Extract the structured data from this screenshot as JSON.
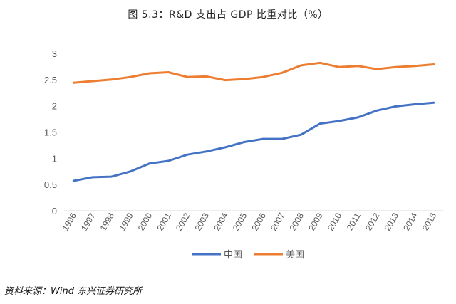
{
  "chart_data": {
    "type": "line",
    "title": "图 5.3：R&D 支出占 GDP 比重对比（%）",
    "source": "资料来源：Wind 东兴证券研究所",
    "categories": [
      "1996",
      "1997",
      "1998",
      "1999",
      "2000",
      "2001",
      "2002",
      "2003",
      "2004",
      "2005",
      "2006",
      "2007",
      "2008",
      "2009",
      "2010",
      "2011",
      "2012",
      "2013",
      "2014",
      "2015"
    ],
    "ylim": [
      0,
      3
    ],
    "yticks": [
      "0",
      "0.5",
      "1",
      "1.5",
      "2",
      "2.5",
      "3"
    ],
    "legend_position": "bottom",
    "grid": false,
    "series": [
      {
        "name": "中国",
        "color": "#4472C4",
        "values": [
          0.57,
          0.64,
          0.65,
          0.75,
          0.9,
          0.95,
          1.07,
          1.13,
          1.21,
          1.31,
          1.37,
          1.37,
          1.45,
          1.66,
          1.71,
          1.78,
          1.91,
          1.99,
          2.03,
          2.06
        ]
      },
      {
        "name": "美国",
        "color": "#ED7D31",
        "values": [
          2.44,
          2.47,
          2.5,
          2.55,
          2.62,
          2.64,
          2.55,
          2.56,
          2.49,
          2.51,
          2.55,
          2.63,
          2.77,
          2.82,
          2.74,
          2.76,
          2.7,
          2.74,
          2.76,
          2.79
        ]
      }
    ]
  }
}
